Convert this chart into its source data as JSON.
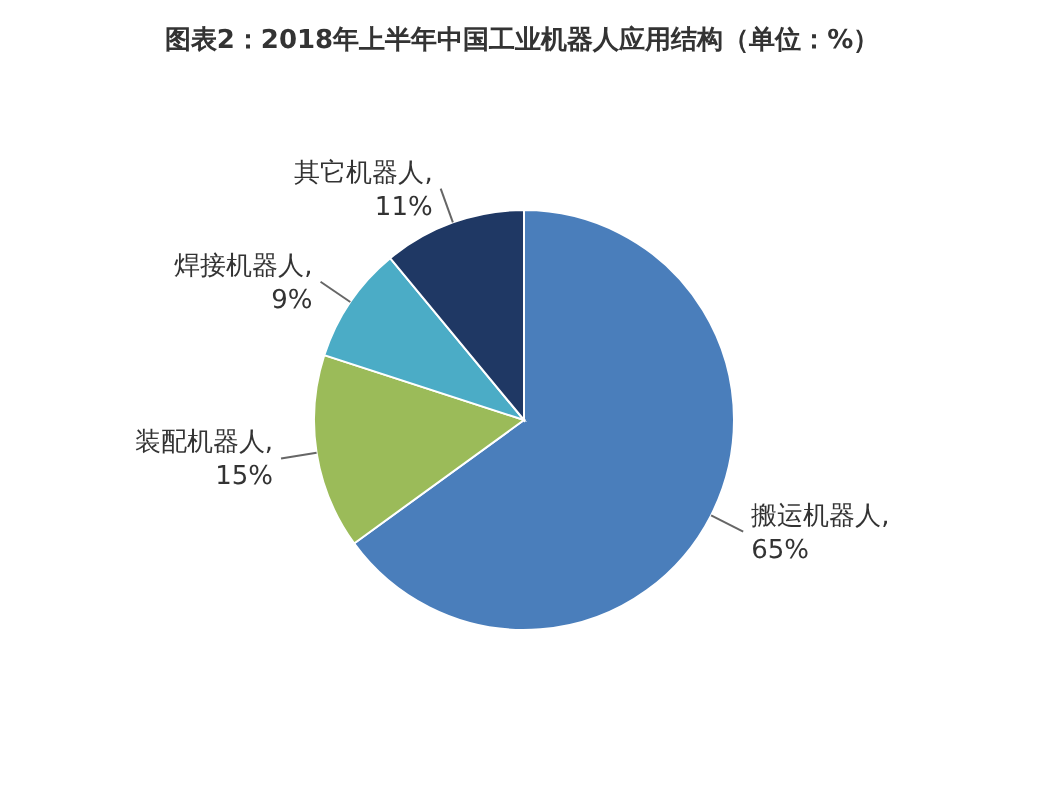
{
  "chart_data": {
    "type": "pie",
    "title": "图表2：2018年上半年中国工业机器人应用结构（单位：%）",
    "categories": [
      "搬运机器人",
      "装配机器人",
      "焊接机器人",
      "其它机器人"
    ],
    "values": [
      65,
      15,
      9,
      11
    ],
    "value_labels": [
      ", 65%",
      ", 15%",
      ", 9%",
      ", 11%"
    ],
    "colors": [
      "#4a7ebb",
      "#9bbb59",
      "#4bacc6",
      "#1f3864"
    ]
  }
}
